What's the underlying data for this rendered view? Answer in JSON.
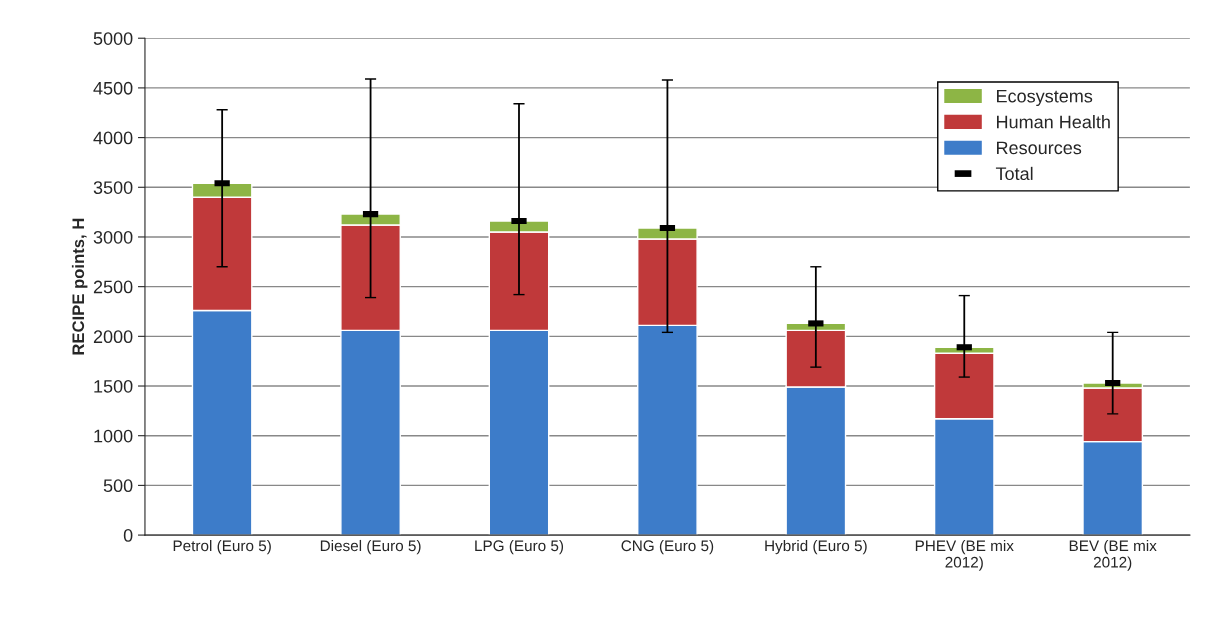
{
  "chart_data": {
    "type": "bar",
    "stacked": true,
    "ylabel": "RECIPE points, H",
    "categories": [
      "Petrol (Euro 5)",
      "Diesel (Euro 5)",
      "LPG (Euro 5)",
      "CNG (Euro 5)",
      "Hybrid (Euro 5)",
      "PHEV (BE mix\n2012)",
      "BEV (BE mix\n2012)"
    ],
    "series": [
      {
        "name": "Resources",
        "color": "#3d7cc9",
        "values": [
          2260,
          2060,
          2060,
          2110,
          1490,
          1170,
          940
        ]
      },
      {
        "name": "Human Health",
        "color": "#c0393a",
        "values": [
          1140,
          1060,
          990,
          870,
          570,
          660,
          540
        ]
      },
      {
        "name": "Ecosystems",
        "color": "#8db545",
        "values": [
          140,
          110,
          110,
          110,
          70,
          60,
          50
        ]
      },
      {
        "name": "Total",
        "type": "scatter",
        "color": "#000000",
        "values": [
          3540,
          3230,
          3160,
          3090,
          2130,
          1890,
          1530
        ],
        "errors": [
          [
            2700,
            4280
          ],
          [
            2390,
            4590
          ],
          [
            2420,
            4340
          ],
          [
            2040,
            4580
          ],
          [
            1690,
            2700
          ],
          [
            1590,
            2410
          ],
          [
            1220,
            2040
          ]
        ]
      }
    ],
    "ylim": [
      0,
      5000
    ],
    "yticks": [
      0,
      500,
      1000,
      1500,
      2000,
      2500,
      3000,
      3500,
      4000,
      4500,
      5000
    ],
    "grid": "y",
    "legend": "top right"
  }
}
